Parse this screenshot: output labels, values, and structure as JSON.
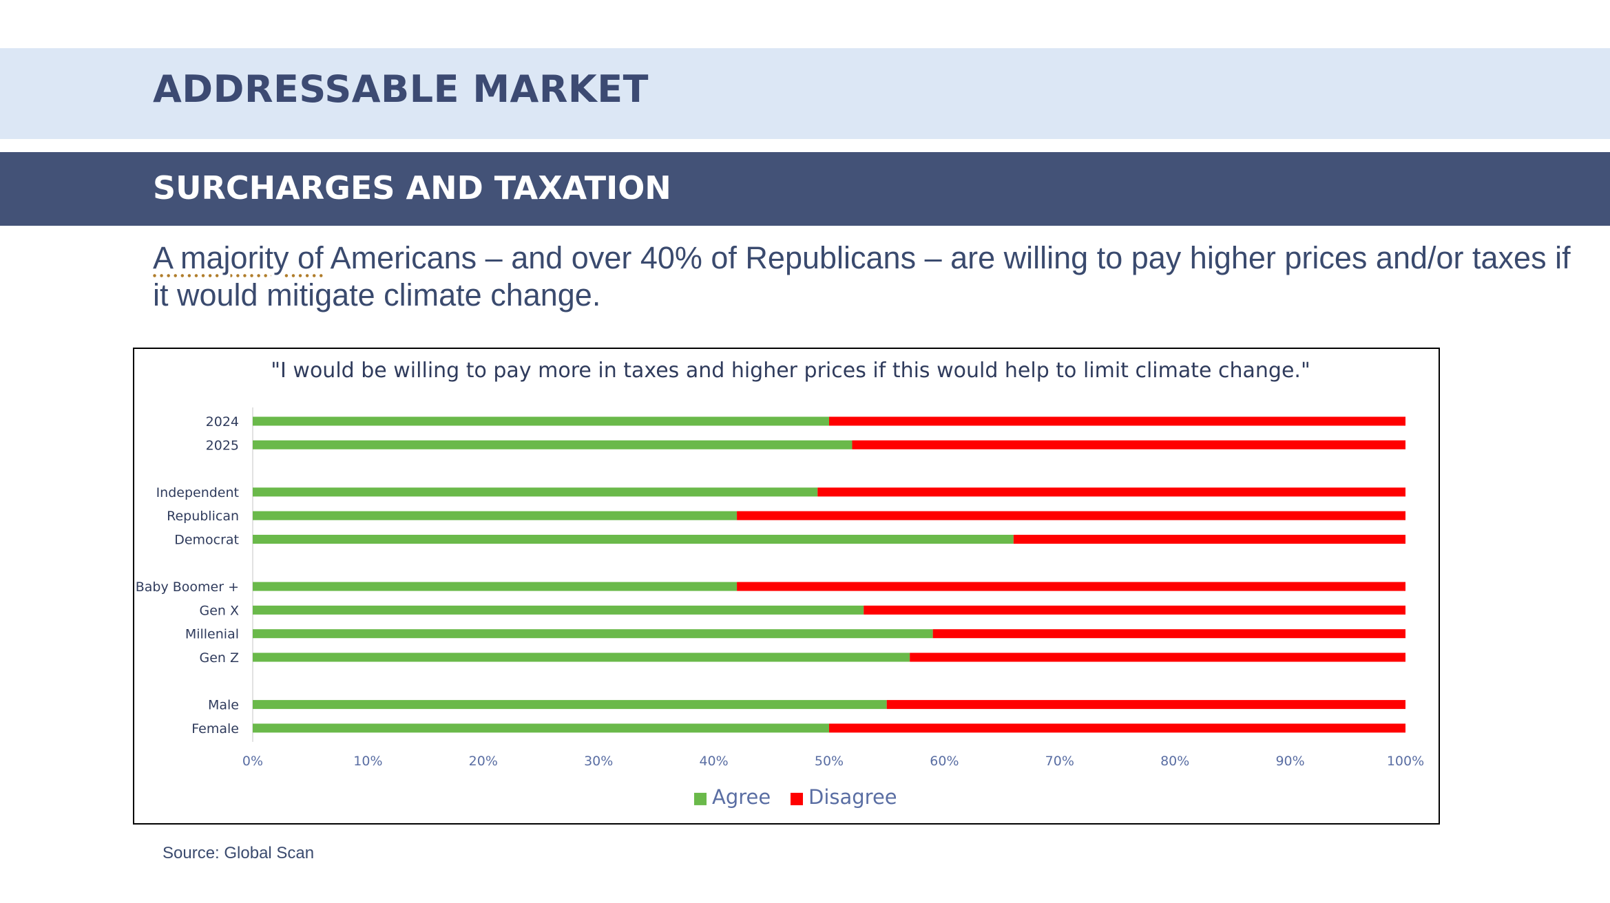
{
  "header": {
    "title": "ADDRESSABLE MARKET",
    "subtitle": "SURCHARGES AND TAXATION"
  },
  "lead": {
    "part1": "A majority of",
    "part2": " Americans – and over 40% of Republicans – are willing to pay higher prices and/or taxes if it would mitigate climate change."
  },
  "source": "Source: Global Scan",
  "colors": {
    "agree": "#6ab94a",
    "disagree": "#ff0000",
    "header_light": "#dce7f5",
    "header_dark": "#435277",
    "text": "#3a4a6e"
  },
  "chart_data": {
    "type": "bar",
    "orientation": "horizontal",
    "stacked": "percent",
    "title": "\"I would be willing to pay more in taxes and higher prices if this would help to limit climate change.\"",
    "groups": [
      [
        "2024",
        "2025"
      ],
      [
        "Independent",
        "Republican",
        "Democrat"
      ],
      [
        "Baby Boomer +",
        "Gen X",
        "Millenial",
        "Gen Z"
      ],
      [
        "Male",
        "Female"
      ]
    ],
    "categories": [
      "2024",
      "2025",
      "Independent",
      "Republican",
      "Democrat",
      "Baby Boomer +",
      "Gen X",
      "Millenial",
      "Gen Z",
      "Male",
      "Female"
    ],
    "series": [
      {
        "name": "Agree",
        "values": [
          50,
          52,
          49,
          42,
          66,
          42,
          53,
          59,
          57,
          55,
          50
        ]
      },
      {
        "name": "Disagree",
        "values": [
          50,
          48,
          51,
          58,
          34,
          58,
          47,
          41,
          43,
          45,
          50
        ]
      }
    ],
    "xlim": [
      0,
      100
    ],
    "xticks": [
      "0%",
      "10%",
      "20%",
      "30%",
      "40%",
      "50%",
      "60%",
      "70%",
      "80%",
      "90%",
      "100%"
    ],
    "legend": "bottom",
    "grid": false
  }
}
